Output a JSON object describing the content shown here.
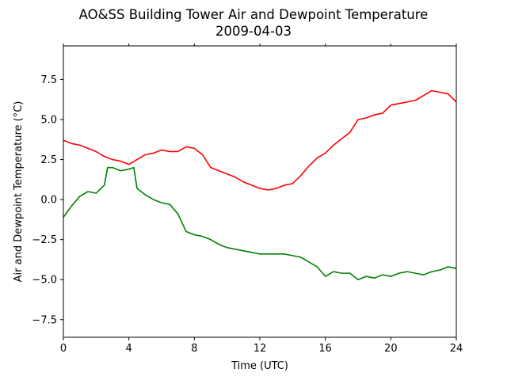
{
  "chart_data": {
    "type": "line",
    "title": "AO&SS Building Tower Air and Dewpoint Temperature",
    "subtitle": "2009-04-03",
    "xlabel": "Time (UTC)",
    "ylabel": "Air and Dewpoint Temperature (°C)",
    "xlim": [
      0,
      24
    ],
    "ylim": [
      -8.6,
      9.6
    ],
    "xticks": [
      0,
      4,
      8,
      12,
      16,
      20,
      24
    ],
    "xtick_labels": [
      "0",
      "4",
      "8",
      "12",
      "16",
      "20",
      "24"
    ],
    "yticks": [
      -7.5,
      -5.0,
      -2.5,
      0.0,
      2.5,
      5.0,
      7.5
    ],
    "ytick_labels": [
      "−7.5",
      "−5.0",
      "−2.5",
      "0.0",
      "2.5",
      "5.0",
      "7.5"
    ],
    "grid": false,
    "series": [
      {
        "color": "#ff0000",
        "x": [
          0,
          0.5,
          1,
          1.5,
          2,
          2.5,
          3,
          3.5,
          4,
          4.5,
          5,
          5.5,
          6,
          6.5,
          7,
          7.5,
          8,
          8.5,
          9,
          9.5,
          10,
          10.5,
          11,
          11.5,
          12,
          12.5,
          13,
          13.5,
          14,
          14.5,
          15,
          15.5,
          16,
          16.5,
          17,
          17.5,
          18,
          18.5,
          19,
          19.5,
          20,
          20.5,
          21,
          21.5,
          22,
          22.5,
          23,
          23.5,
          24
        ],
        "y": [
          3.7,
          3.5,
          3.4,
          3.2,
          3.0,
          2.7,
          2.5,
          2.4,
          2.2,
          2.5,
          2.8,
          2.9,
          3.1,
          3.0,
          3.0,
          3.3,
          3.2,
          2.8,
          2.0,
          1.8,
          1.6,
          1.4,
          1.1,
          0.9,
          0.7,
          0.6,
          0.7,
          0.9,
          1.0,
          1.5,
          2.1,
          2.6,
          2.9,
          3.4,
          3.8,
          4.2,
          5.0,
          5.1,
          5.3,
          5.4,
          5.9,
          6.0,
          6.1,
          6.2,
          6.5,
          6.8,
          6.7,
          6.6,
          6.1
        ]
      },
      {
        "color": "#008000",
        "x": [
          0,
          0.5,
          1,
          1.5,
          2,
          2.5,
          2.7,
          3,
          3.5,
          4,
          4.3,
          4.5,
          5,
          5.5,
          6,
          6.5,
          7,
          7.5,
          8,
          8.5,
          9,
          9.5,
          10,
          10.5,
          11,
          11.5,
          12,
          12.5,
          13,
          13.5,
          14,
          14.5,
          15,
          15.5,
          16,
          16.5,
          17,
          17.5,
          18,
          18.5,
          19,
          19.5,
          20,
          20.5,
          21,
          21.5,
          22,
          22.5,
          23,
          23.5,
          24
        ],
        "y": [
          -1.1,
          -0.4,
          0.2,
          0.5,
          0.4,
          0.9,
          2.0,
          2.0,
          1.8,
          1.9,
          2.0,
          0.7,
          0.3,
          0.0,
          -0.2,
          -0.3,
          -0.9,
          -2.0,
          -2.2,
          -2.3,
          -2.5,
          -2.8,
          -3.0,
          -3.1,
          -3.2,
          -3.3,
          -3.4,
          -3.4,
          -3.4,
          -3.4,
          -3.5,
          -3.6,
          -3.9,
          -4.2,
          -4.8,
          -4.5,
          -4.6,
          -4.6,
          -5.0,
          -4.8,
          -4.9,
          -4.7,
          -4.8,
          -4.6,
          -4.5,
          -4.6,
          -4.7,
          -4.5,
          -4.4,
          -4.2,
          -4.3
        ]
      }
    ]
  }
}
